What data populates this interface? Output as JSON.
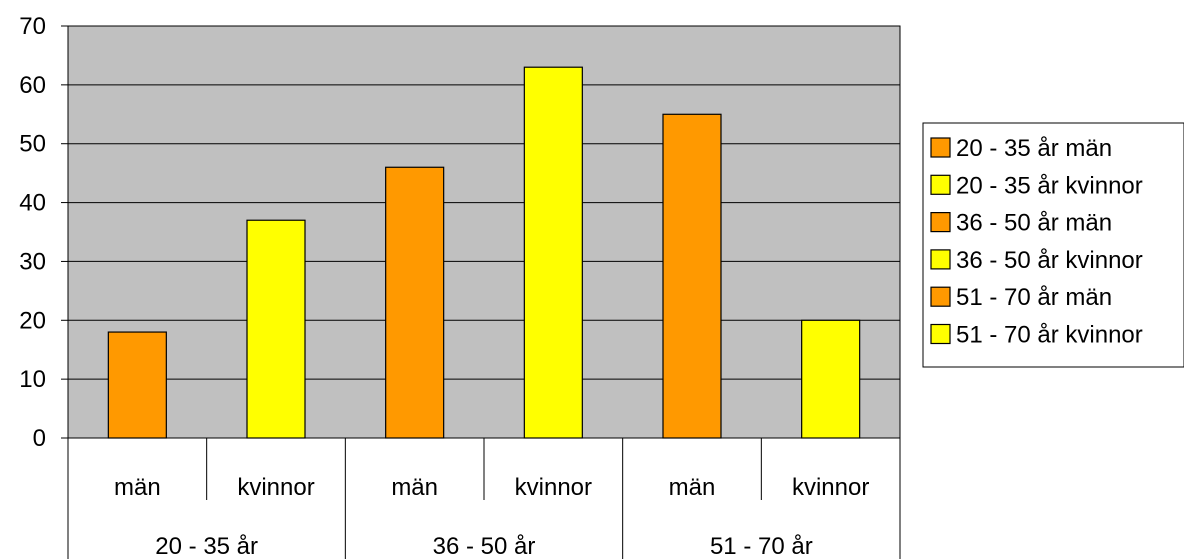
{
  "chart_data": {
    "type": "bar",
    "title": "",
    "xlabel": "",
    "ylabel": "",
    "ylim": [
      0,
      70
    ],
    "yticks": [
      0,
      10,
      20,
      30,
      40,
      50,
      60,
      70
    ],
    "grid": true,
    "legend_position": "right",
    "groups": [
      "20 - 35 år",
      "36 - 50 år",
      "51 - 70 år"
    ],
    "categories": [
      "män",
      "kvinnor",
      "män",
      "kvinnor",
      "män",
      "kvinnor"
    ],
    "series": [
      {
        "name": "20 - 35 år män",
        "group": "20 - 35 år",
        "category": "män",
        "value": 18,
        "color": "#ff9900"
      },
      {
        "name": "20 - 35 år kvinnor",
        "group": "20 - 35 år",
        "category": "kvinnor",
        "value": 37,
        "color": "#ffff00"
      },
      {
        "name": "36 - 50 år män",
        "group": "36 - 50 år",
        "category": "män",
        "value": 46,
        "color": "#ff9900"
      },
      {
        "name": "36 - 50 år kvinnor",
        "group": "36 - 50 år",
        "category": "kvinnor",
        "value": 63,
        "color": "#ffff00"
      },
      {
        "name": "51 - 70 år män",
        "group": "51 - 70 år",
        "category": "män",
        "value": 55,
        "color": "#ff9900"
      },
      {
        "name": "51 - 70 år kvinnor",
        "group": "51 - 70 år",
        "category": "kvinnor",
        "value": 20,
        "color": "#ffff00"
      }
    ],
    "colors": {
      "plot_background": "#c0c0c0",
      "men": "#ff9900",
      "women": "#ffff00"
    }
  }
}
